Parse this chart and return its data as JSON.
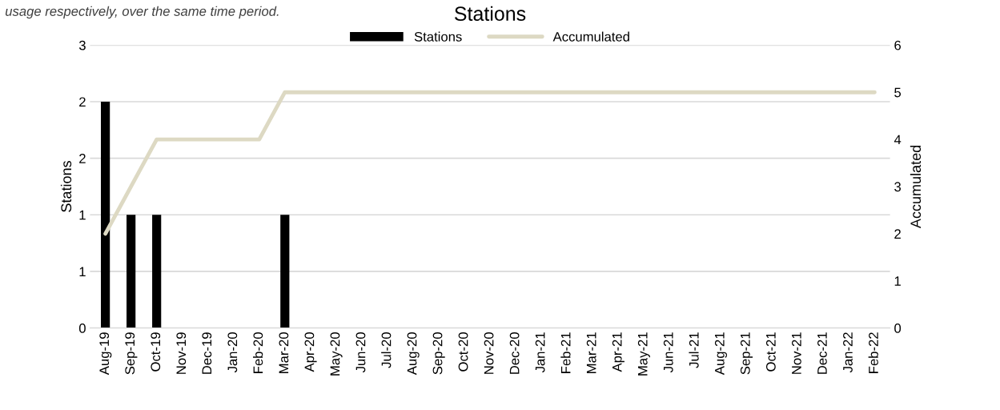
{
  "chart_data": {
    "type": "bar",
    "title": "Stations",
    "ylabel": "Stations",
    "y2label": "Accumulated",
    "annotations": [
      "usage respectively, over the same time period."
    ],
    "categories": [
      "Aug-19",
      "Sep-19",
      "Oct-19",
      "Nov-19",
      "Dec-19",
      "Jan-20",
      "Feb-20",
      "Mar-20",
      "Apr-20",
      "May-20",
      "Jun-20",
      "Jul-20",
      "Aug-20",
      "Sep-20",
      "Oct-20",
      "Nov-20",
      "Dec-20",
      "Jan-21",
      "Feb-21",
      "Mar-21",
      "Apr-21",
      "May-21",
      "Jun-21",
      "Jul-21",
      "Aug-21",
      "Sep-21",
      "Oct-21",
      "Nov-21",
      "Dec-21",
      "Jan-22",
      "Feb-22"
    ],
    "series": [
      {
        "name": "Stations",
        "color": "#000000",
        "values": [
          2,
          1,
          1,
          0,
          0,
          0,
          0,
          1,
          0,
          0,
          0,
          0,
          0,
          0,
          0,
          0,
          0,
          0,
          0,
          0,
          0,
          0,
          0,
          0,
          0,
          0,
          0,
          0,
          0,
          0,
          0
        ]
      },
      {
        "name": "Accumulated",
        "type": "line",
        "axis": "y2",
        "color": "#ddd9c3",
        "values": [
          2,
          3,
          4,
          4,
          4,
          4,
          4,
          5,
          5,
          5,
          5,
          5,
          5,
          5,
          5,
          5,
          5,
          5,
          5,
          5,
          5,
          5,
          5,
          5,
          5,
          5,
          5,
          5,
          5,
          5,
          5
        ]
      }
    ],
    "ylim": [
      0,
      2.5
    ],
    "yticks": [
      0,
      {
        "value": 0.5,
        "label": "1"
      },
      1,
      {
        "value": 1.5,
        "label": "2"
      },
      2,
      {
        "value": 2.5,
        "label": "3"
      }
    ],
    "y2lim": [
      0,
      6
    ],
    "y2ticks": [
      0,
      1,
      2,
      3,
      4,
      5,
      6
    ],
    "grid": "y",
    "legend": "top"
  }
}
